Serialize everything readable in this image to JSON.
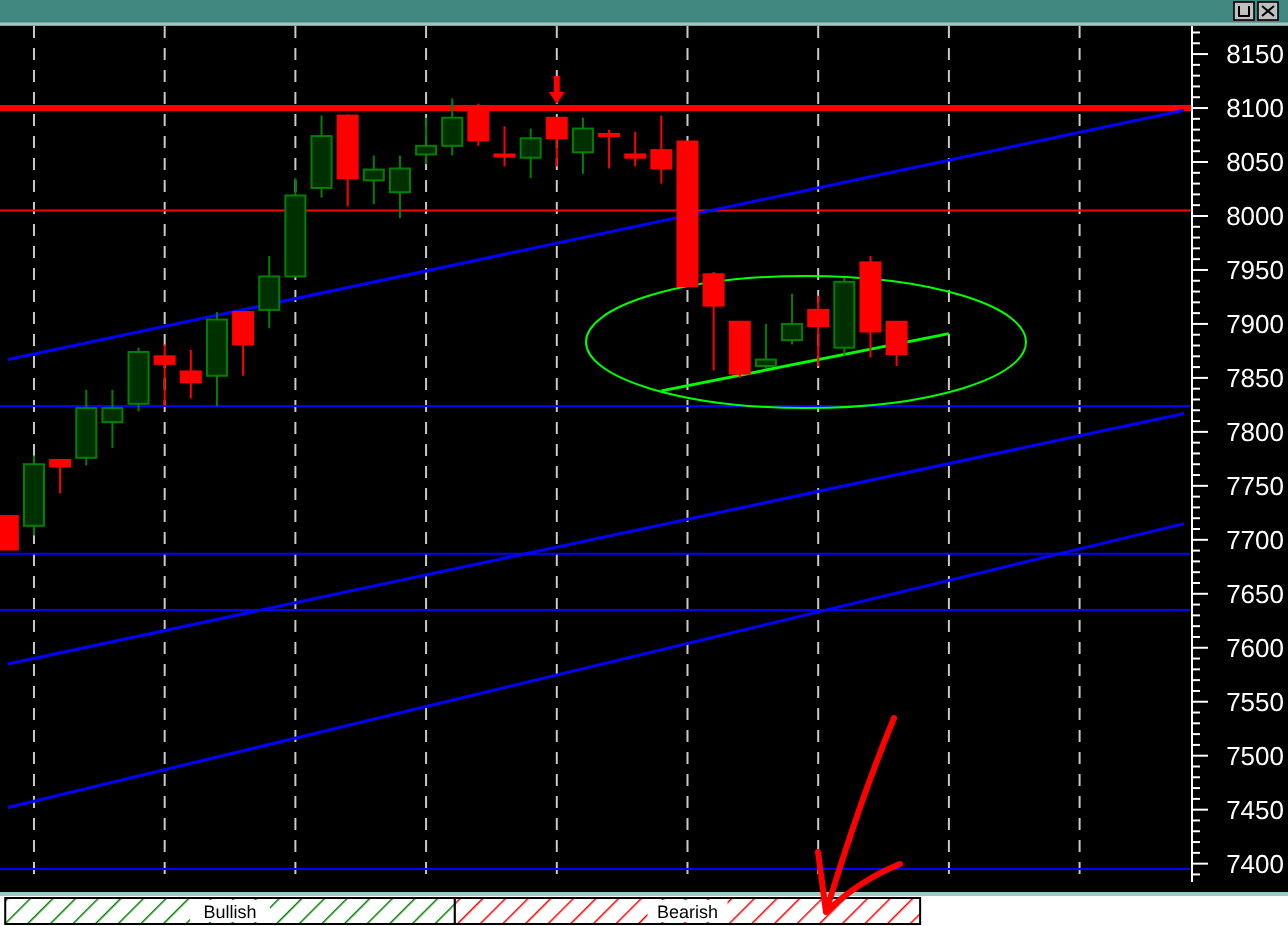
{
  "chart_data": {
    "type": "candlestick",
    "categories": [
      null,
      null,
      null,
      null,
      null,
      null,
      null,
      null,
      null,
      null,
      null,
      null,
      null,
      null,
      null,
      null,
      null,
      null,
      null,
      null,
      null,
      null,
      null,
      null,
      null,
      null,
      null,
      null,
      null,
      null,
      null,
      null,
      null,
      null,
      null,
      null,
      null,
      null,
      null,
      null,
      null,
      null,
      null,
      null,
      null,
      null
    ],
    "ohlc": [
      [
        7722,
        7722,
        7691,
        7691
      ],
      [
        7713,
        7778,
        7704,
        7770
      ],
      [
        7774,
        7774,
        7743,
        7768
      ],
      [
        7776,
        7839,
        7769,
        7822
      ],
      [
        7809,
        7839,
        7785,
        7822
      ],
      [
        7826,
        7878,
        7819,
        7874
      ],
      [
        7870,
        7881,
        7824,
        7863
      ],
      [
        7856,
        7876,
        7831,
        7846
      ],
      [
        7852,
        7911,
        7824,
        7904
      ],
      [
        7911,
        7911,
        7852,
        7881
      ],
      [
        7913,
        7963,
        7896,
        7944
      ],
      [
        7944,
        8035,
        7944,
        8019
      ],
      [
        8026,
        8093,
        8017,
        8074
      ],
      [
        8093,
        8094,
        8009,
        8035
      ],
      [
        8033,
        8056,
        8011,
        8043
      ],
      [
        8022,
        8056,
        7998,
        8044
      ],
      [
        8057,
        8091,
        8048,
        8065
      ],
      [
        8065,
        8109,
        8056,
        8091
      ],
      [
        8100,
        8104,
        8065,
        8070
      ],
      [
        8057,
        8083,
        8046,
        8055
      ],
      [
        8054,
        8081,
        8035,
        8072
      ],
      [
        8091,
        8091,
        8046,
        8072
      ],
      [
        8059,
        8091,
        8039,
        8081
      ],
      [
        8076,
        8080,
        8044,
        8074
      ],
      [
        8057,
        8078,
        8046,
        8054
      ],
      [
        8061,
        8093,
        8030,
        8044
      ],
      [
        8069,
        8069,
        7935,
        7935
      ],
      [
        7946,
        7948,
        7857,
        7917
      ],
      [
        7902,
        7902,
        7850,
        7854
      ],
      [
        7861,
        7900,
        7859,
        7867
      ],
      [
        7885,
        7928,
        7881,
        7900
      ],
      [
        7913,
        7926,
        7861,
        7898
      ],
      [
        7878,
        7943,
        7870,
        7939
      ],
      [
        7957,
        7963,
        7869,
        7893
      ],
      [
        7902,
        7902,
        7861,
        7872
      ],
      null,
      null,
      null,
      null,
      null,
      null,
      null,
      null,
      null,
      null,
      null
    ],
    "colors": [
      "#ff0000",
      "#008000",
      "#ff0000",
      "#008000",
      "#008000",
      "#008000",
      "#ff0000",
      "#ff0000",
      "#008000",
      "#ff0000",
      "#008000",
      "#008000",
      "#008000",
      "#ff0000",
      "#008000",
      "#008000",
      "#008000",
      "#008000",
      "#ff0000",
      "#ff0000",
      "#008000",
      "#ff0000",
      "#008000",
      "#ff0000",
      "#ff0000",
      "#ff0000",
      "#ff0000",
      "#ff0000",
      "#ff0000",
      "#008000",
      "#008000",
      "#ff0000",
      "#008000",
      "#ff0000",
      "#ff0000",
      null,
      null,
      null,
      null,
      null,
      null,
      null,
      null,
      null,
      null,
      null
    ],
    "series": [
      {
        "type": "line",
        "color": "#0000ff",
        "values": [
          7867,
          null,
          null,
          null,
          null,
          null,
          null,
          null,
          null,
          null,
          null,
          null,
          null,
          null,
          null,
          null,
          null,
          null,
          null,
          null,
          null,
          null,
          null,
          null,
          null,
          null,
          null,
          null,
          null,
          null,
          null,
          null,
          null,
          null,
          null,
          null,
          null,
          null,
          null,
          null,
          null,
          null,
          null,
          null,
          null,
          8098
        ]
      },
      {
        "type": "line",
        "color": "#0000ff",
        "values": [
          7585,
          null,
          null,
          null,
          null,
          null,
          null,
          null,
          null,
          null,
          null,
          null,
          null,
          null,
          null,
          null,
          null,
          null,
          null,
          null,
          null,
          null,
          null,
          null,
          null,
          null,
          null,
          null,
          null,
          null,
          null,
          null,
          null,
          null,
          null,
          null,
          null,
          null,
          null,
          null,
          null,
          null,
          null,
          null,
          null,
          7817
        ]
      },
      {
        "type": "line",
        "color": "#0000ff",
        "values": [
          7452,
          null,
          null,
          null,
          null,
          null,
          null,
          null,
          null,
          null,
          null,
          null,
          null,
          null,
          null,
          null,
          null,
          null,
          null,
          null,
          null,
          null,
          null,
          null,
          null,
          null,
          null,
          null,
          null,
          null,
          null,
          null,
          null,
          null,
          null,
          null,
          null,
          null,
          null,
          null,
          null,
          null,
          null,
          null,
          null,
          7715
        ]
      },
      {
        "type": "line",
        "color": "#00ff00",
        "values": [
          null,
          null,
          null,
          null,
          null,
          null,
          null,
          null,
          null,
          null,
          null,
          null,
          null,
          null,
          null,
          null,
          null,
          null,
          null,
          null,
          null,
          null,
          null,
          null,
          null,
          7838,
          null,
          null,
          null,
          null,
          null,
          null,
          null,
          null,
          null,
          null,
          7891,
          null,
          null,
          null,
          null,
          null,
          null,
          null,
          null,
          null
        ]
      }
    ],
    "ref_lines": [
      {
        "axis": "y",
        "value": 8100,
        "color": "#ff0000"
      },
      {
        "axis": "y",
        "value": 8005,
        "color": "#ff0000"
      },
      {
        "axis": "y",
        "value": 7824,
        "color": "#0000ff"
      },
      {
        "axis": "y",
        "value": 7687,
        "color": "#0000ff"
      },
      {
        "axis": "y",
        "value": 7635,
        "color": "#0000ff"
      },
      {
        "axis": "y",
        "value": 7395,
        "color": "#0000ff"
      }
    ],
    "annotations": [
      "Bullish",
      "Bearish"
    ],
    "ylim": [
      7383,
      8176
    ],
    "yticks": [
      {
        "value": 7390,
        "label": null
      },
      7400,
      {
        "value": 7410,
        "label": null
      },
      {
        "value": 7420,
        "label": null
      },
      {
        "value": 7430,
        "label": null
      },
      {
        "value": 7440,
        "label": null
      },
      7450,
      {
        "value": 7460,
        "label": null
      },
      {
        "value": 7470,
        "label": null
      },
      {
        "value": 7480,
        "label": null
      },
      {
        "value": 7490,
        "label": null
      },
      7500,
      {
        "value": 7510,
        "label": null
      },
      {
        "value": 7520,
        "label": null
      },
      {
        "value": 7530,
        "label": null
      },
      {
        "value": 7540,
        "label": null
      },
      7550,
      {
        "value": 7560,
        "label": null
      },
      {
        "value": 7570,
        "label": null
      },
      {
        "value": 7580,
        "label": null
      },
      {
        "value": 7590,
        "label": null
      },
      7600,
      {
        "value": 7610,
        "label": null
      },
      {
        "value": 7620,
        "label": null
      },
      {
        "value": 7630,
        "label": null
      },
      {
        "value": 7640,
        "label": null
      },
      7650,
      {
        "value": 7660,
        "label": null
      },
      {
        "value": 7670,
        "label": null
      },
      {
        "value": 7680,
        "label": null
      },
      {
        "value": 7690,
        "label": null
      },
      7700,
      {
        "value": 7710,
        "label": null
      },
      {
        "value": 7720,
        "label": null
      },
      {
        "value": 7730,
        "label": null
      },
      {
        "value": 7740,
        "label": null
      },
      7750,
      {
        "value": 7760,
        "label": null
      },
      {
        "value": 7770,
        "label": null
      },
      {
        "value": 7780,
        "label": null
      },
      {
        "value": 7790,
        "label": null
      },
      7800,
      {
        "value": 7810,
        "label": null
      },
      {
        "value": 7820,
        "label": null
      },
      {
        "value": 7830,
        "label": null
      },
      {
        "value": 7840,
        "label": null
      },
      7850,
      {
        "value": 7860,
        "label": null
      },
      {
        "value": 7870,
        "label": null
      },
      {
        "value": 7880,
        "label": null
      },
      {
        "value": 7890,
        "label": null
      },
      7900,
      {
        "value": 7910,
        "label": null
      },
      {
        "value": 7920,
        "label": null
      },
      {
        "value": 7930,
        "label": null
      },
      {
        "value": 7940,
        "label": null
      },
      7950,
      {
        "value": 7960,
        "label": null
      },
      {
        "value": 7970,
        "label": null
      },
      {
        "value": 7980,
        "label": null
      },
      {
        "value": 7990,
        "label": null
      },
      8000,
      {
        "value": 8010,
        "label": null
      },
      {
        "value": 8020,
        "label": null
      },
      {
        "value": 8030,
        "label": null
      },
      {
        "value": 8040,
        "label": null
      },
      8050,
      {
        "value": 8060,
        "label": null
      },
      {
        "value": 8070,
        "label": null
      },
      {
        "value": 8080,
        "label": null
      },
      {
        "value": 8090,
        "label": null
      },
      8100,
      {
        "value": 8110,
        "label": null
      },
      {
        "value": 8120,
        "label": null
      },
      {
        "value": 8130,
        "label": null
      },
      {
        "value": 8140,
        "label": null
      },
      8150,
      {
        "value": 8160,
        "label": null
      },
      {
        "value": 8170,
        "label": null
      }
    ],
    "tick_labels": "y",
    "grid": "x"
  }
}
